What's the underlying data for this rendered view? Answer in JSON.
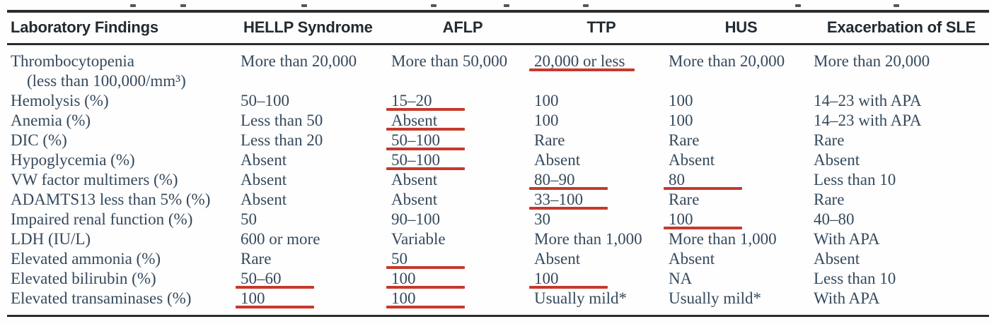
{
  "colors": {
    "page_background": "#fefefe",
    "body_text": "#35495c",
    "header_text": "#222a31",
    "rule": "#2b2d2e",
    "annotation_red": "#c6392b"
  },
  "table": {
    "headers": [
      "Laboratory Findings",
      "HELLP Syndrome",
      "AFLP",
      "TTP",
      "HUS",
      "Exacerbation of SLE"
    ],
    "rows": [
      {
        "label": "Thrombocytopenia",
        "sublabel": "(less than 100,000/mm³)",
        "cells": [
          {
            "text": "More than 20,000",
            "underlined": false
          },
          {
            "text": "More than 50,000",
            "underlined": false
          },
          {
            "text": "20,000 or less",
            "underlined": true
          },
          {
            "text": "More than 20,000",
            "underlined": false
          },
          {
            "text": "More than 20,000",
            "underlined": false
          }
        ]
      },
      {
        "label": "Hemolysis (%)",
        "cells": [
          {
            "text": "50–100",
            "underlined": false
          },
          {
            "text": "15–20",
            "underlined": true
          },
          {
            "text": "100",
            "underlined": false
          },
          {
            "text": "100",
            "underlined": false
          },
          {
            "text": "14–23 with APA",
            "underlined": false
          }
        ]
      },
      {
        "label": "Anemia (%)",
        "cells": [
          {
            "text": "Less than 50",
            "underlined": false
          },
          {
            "text": "Absent",
            "underlined": true
          },
          {
            "text": "100",
            "underlined": false
          },
          {
            "text": "100",
            "underlined": false
          },
          {
            "text": "14–23 with APA",
            "underlined": false
          }
        ]
      },
      {
        "label": "DIC (%)",
        "cells": [
          {
            "text": "Less than 20",
            "underlined": false
          },
          {
            "text": "50–100",
            "underlined": true
          },
          {
            "text": "Rare",
            "underlined": false
          },
          {
            "text": "Rare",
            "underlined": false
          },
          {
            "text": "Rare",
            "underlined": false
          }
        ]
      },
      {
        "label": "Hypoglycemia (%)",
        "cells": [
          {
            "text": "Absent",
            "underlined": false
          },
          {
            "text": "50–100",
            "underlined": true
          },
          {
            "text": "Absent",
            "underlined": false
          },
          {
            "text": "Absent",
            "underlined": false
          },
          {
            "text": "Absent",
            "underlined": false
          }
        ]
      },
      {
        "label": "VW factor multimers (%)",
        "cells": [
          {
            "text": "Absent",
            "underlined": false
          },
          {
            "text": "Absent",
            "underlined": false
          },
          {
            "text": "80–90",
            "underlined": true
          },
          {
            "text": "80",
            "underlined": true
          },
          {
            "text": "Less than 10",
            "underlined": false
          }
        ]
      },
      {
        "label": "ADAMTS13 less than 5% (%)",
        "cells": [
          {
            "text": "Absent",
            "underlined": false
          },
          {
            "text": "Absent",
            "underlined": false
          },
          {
            "text": "33–100",
            "underlined": true
          },
          {
            "text": "Rare",
            "underlined": false
          },
          {
            "text": "Rare",
            "underlined": false
          }
        ]
      },
      {
        "label": "Impaired renal function (%)",
        "cells": [
          {
            "text": "50",
            "underlined": false
          },
          {
            "text": "90–100",
            "underlined": false
          },
          {
            "text": "30",
            "underlined": false
          },
          {
            "text": "100",
            "underlined": true
          },
          {
            "text": "40–80",
            "underlined": false
          }
        ]
      },
      {
        "label": "LDH (IU/L)",
        "cells": [
          {
            "text": "600 or more",
            "underlined": false
          },
          {
            "text": "Variable",
            "underlined": false
          },
          {
            "text": "More than 1,000",
            "underlined": false
          },
          {
            "text": "More than 1,000",
            "underlined": false
          },
          {
            "text": "With APA",
            "underlined": false
          }
        ]
      },
      {
        "label": "Elevated ammonia (%)",
        "cells": [
          {
            "text": "Rare",
            "underlined": false
          },
          {
            "text": "50",
            "underlined": true
          },
          {
            "text": "Absent",
            "underlined": false
          },
          {
            "text": "Absent",
            "underlined": false
          },
          {
            "text": "Absent",
            "underlined": false
          }
        ]
      },
      {
        "label": "Elevated bilirubin (%)",
        "cells": [
          {
            "text": "50–60",
            "underlined": true
          },
          {
            "text": "100",
            "underlined": true
          },
          {
            "text": "100",
            "underlined": true
          },
          {
            "text": "NA",
            "underlined": false
          },
          {
            "text": "Less than 10",
            "underlined": false
          }
        ]
      },
      {
        "label": "Elevated transaminases (%)",
        "cells": [
          {
            "text": "100",
            "underlined": true
          },
          {
            "text": "100",
            "underlined": true
          },
          {
            "text": "Usually mild*",
            "underlined": false
          },
          {
            "text": "Usually mild*",
            "underlined": false
          },
          {
            "text": "With APA",
            "underlined": false
          }
        ]
      }
    ]
  },
  "artifacts": {
    "top_speck_positions": [
      184,
      255,
      426,
      609,
      712,
      824,
      1124,
      1263
    ]
  }
}
